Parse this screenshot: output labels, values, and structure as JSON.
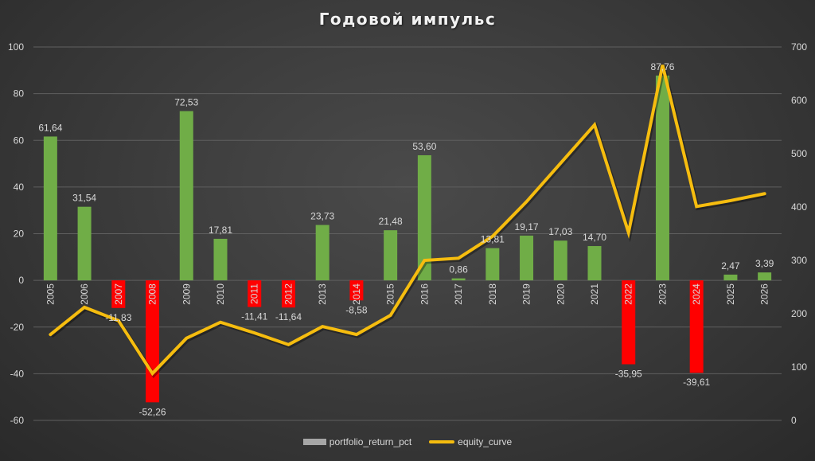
{
  "chart_data": {
    "type": "bar",
    "title": "Годовой импульс",
    "categories": [
      "2005",
      "2006",
      "2007",
      "2008",
      "2009",
      "2010",
      "2011",
      "2012",
      "2013",
      "2014",
      "2015",
      "2016",
      "2017",
      "2018",
      "2019",
      "2020",
      "2021",
      "2022",
      "2023",
      "2024",
      "2025",
      "2026"
    ],
    "series": [
      {
        "name": "portfolio_return_pct",
        "type": "bar",
        "axis": "left",
        "values": [
          61.64,
          31.54,
          -11.83,
          -52.26,
          72.53,
          17.81,
          -11.41,
          -11.64,
          23.73,
          -8.58,
          21.48,
          53.6,
          0.86,
          13.81,
          19.17,
          17.03,
          14.7,
          -35.95,
          87.76,
          -39.61,
          2.47,
          3.39
        ],
        "labels": [
          "61,64",
          "31,54",
          "-11,83",
          "-52,26",
          "72,53",
          "17,81",
          "-11,41",
          "-11,64",
          "23,73",
          "-8,58",
          "21,48",
          "53,60",
          "0,86",
          "13,81",
          "19,17",
          "17,03",
          "14,70",
          "-35,95",
          "87,76",
          "-39,61",
          "2,47",
          "3,39"
        ],
        "positive_color": "#70ad47",
        "negative_color": "#ff0000"
      },
      {
        "name": "equity_curve",
        "type": "line",
        "axis": "right",
        "values": [
          161,
          212,
          187,
          88,
          154,
          184,
          164,
          142,
          176,
          161,
          197,
          300,
          304,
          345,
          410,
          482,
          554,
          352,
          666,
          401,
          412,
          425
        ],
        "color": "#f6bd0f"
      }
    ],
    "y_left": {
      "min": -60,
      "max": 100,
      "step": 20,
      "ticks": [
        "100",
        "80",
        "60",
        "40",
        "20",
        "0",
        "-20",
        "-40",
        "-60"
      ]
    },
    "y_right": {
      "min": 0,
      "max": 700,
      "step": 100,
      "ticks": [
        "700",
        "600",
        "500",
        "400",
        "300",
        "200",
        "100",
        "0"
      ]
    },
    "xlabel": "",
    "ylabel": "",
    "grid": true,
    "legend_position": "bottom"
  },
  "legend": {
    "bar_label": "portfolio_return_pct",
    "line_label": "equity_curve"
  }
}
